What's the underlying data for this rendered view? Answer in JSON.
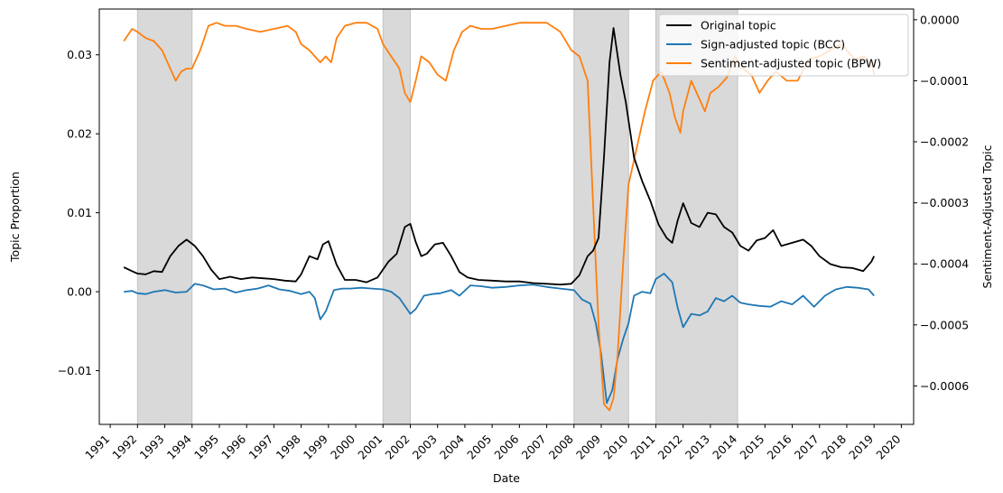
{
  "chart_data": {
    "type": "line",
    "xlabel": "Date",
    "ylabel_left": "Topic Proportion",
    "ylabel_right": "Sentiment-Adjusted Topic",
    "xlim": [
      1990.6,
      2020.45
    ],
    "ylim_left": [
      -0.0168,
      0.0358
    ],
    "ylim_right": [
      -0.000663,
      1.75e-05
    ],
    "x_ticks": [
      1991,
      1992,
      1993,
      1994,
      1995,
      1996,
      1997,
      1998,
      1999,
      2000,
      2001,
      2002,
      2003,
      2004,
      2005,
      2006,
      2007,
      2008,
      2009,
      2010,
      2011,
      2012,
      2013,
      2014,
      2015,
      2016,
      2017,
      2018,
      2019,
      2020
    ],
    "x_tick_labels": [
      "1991",
      "1992",
      "1993",
      "1994",
      "1995",
      "1996",
      "1997",
      "1998",
      "1999",
      "2000",
      "2001",
      "2002",
      "2003",
      "2004",
      "2005",
      "2006",
      "2007",
      "2008",
      "2009",
      "2010",
      "2011",
      "2012",
      "2013",
      "2014",
      "2015",
      "2016",
      "2017",
      "2018",
      "2019",
      "2020"
    ],
    "y_left_ticks": [
      -0.01,
      0.0,
      0.01,
      0.02,
      0.03
    ],
    "y_left_tick_labels": [
      "−0.01",
      "0.00",
      "0.01",
      "0.02",
      "0.03"
    ],
    "y_right_ticks": [
      -0.0006,
      -0.0005,
      -0.0004,
      -0.0003,
      -0.0002,
      -0.0001,
      0.0
    ],
    "y_right_tick_labels": [
      "−0.0006",
      "−0.0005",
      "−0.0004",
      "−0.0003",
      "−0.0002",
      "−0.0001",
      "0.0000"
    ],
    "shaded_periods": [
      [
        1992,
        1994
      ],
      [
        2001,
        2002
      ],
      [
        2008,
        2010
      ],
      [
        2011,
        2014
      ]
    ],
    "shade_color": "#d9d9d9",
    "grid": false,
    "legend_position": "top-right",
    "series": [
      {
        "name": "Original topic",
        "axis": "left",
        "color": "#000000",
        "x": [
          1991.5,
          1991.8,
          1992.0,
          1992.3,
          1992.6,
          1992.9,
          1993.2,
          1993.5,
          1993.8,
          1994.1,
          1994.4,
          1994.7,
          1995.0,
          1995.4,
          1995.8,
          1996.2,
          1996.6,
          1997.0,
          1997.4,
          1997.8,
          1998.0,
          1998.3,
          1998.6,
          1998.8,
          1999.0,
          1999.3,
          1999.6,
          2000.0,
          2000.4,
          2000.8,
          2001.2,
          2001.5,
          2001.8,
          2002.0,
          2002.2,
          2002.4,
          2002.6,
          2002.9,
          2003.2,
          2003.5,
          2003.8,
          2004.1,
          2004.5,
          2005.0,
          2005.5,
          2006.0,
          2006.5,
          2007.0,
          2007.5,
          2007.9,
          2008.2,
          2008.5,
          2008.7,
          2008.9,
          2009.1,
          2009.3,
          2009.45,
          2009.7,
          2009.9,
          2010.2,
          2010.5,
          2010.8,
          2011.1,
          2011.4,
          2011.6,
          2011.8,
          2012.0,
          2012.3,
          2012.6,
          2012.9,
          2013.2,
          2013.5,
          2013.8,
          2014.1,
          2014.4,
          2014.7,
          2015.0,
          2015.3,
          2015.6,
          2016.0,
          2016.4,
          2016.7,
          2017.0,
          2017.4,
          2017.8,
          2018.2,
          2018.6,
          2018.9,
          2019.0
        ],
        "values": [
          0.0031,
          0.0026,
          0.0023,
          0.0022,
          0.0026,
          0.0025,
          0.0045,
          0.0058,
          0.0066,
          0.0058,
          0.0045,
          0.0028,
          0.0016,
          0.0019,
          0.0016,
          0.0018,
          0.0017,
          0.0016,
          0.0014,
          0.0013,
          0.0022,
          0.0045,
          0.0041,
          0.006,
          0.0064,
          0.0034,
          0.0015,
          0.0015,
          0.0012,
          0.0018,
          0.0038,
          0.0048,
          0.0082,
          0.0086,
          0.0063,
          0.0045,
          0.0048,
          0.006,
          0.0062,
          0.0045,
          0.0025,
          0.0018,
          0.0015,
          0.0014,
          0.0013,
          0.0013,
          0.0011,
          0.001,
          0.0009,
          0.001,
          0.0021,
          0.0045,
          0.0052,
          0.0068,
          0.017,
          0.029,
          0.0334,
          0.0275,
          0.024,
          0.017,
          0.014,
          0.0115,
          0.0085,
          0.0068,
          0.0062,
          0.009,
          0.0112,
          0.0087,
          0.0082,
          0.01,
          0.0098,
          0.0082,
          0.0075,
          0.0058,
          0.0052,
          0.0065,
          0.0068,
          0.0078,
          0.0058,
          0.0062,
          0.0066,
          0.0058,
          0.0045,
          0.0035,
          0.0031,
          0.003,
          0.0026,
          0.0038,
          0.0045
        ]
      },
      {
        "name": "Sign-adjusted topic (BCC)",
        "axis": "left",
        "color": "#1f77b4",
        "x": [
          1991.5,
          1991.8,
          1992.0,
          1992.3,
          1992.6,
          1993.0,
          1993.4,
          1993.8,
          1994.1,
          1994.4,
          1994.8,
          1995.2,
          1995.6,
          1996.0,
          1996.4,
          1996.8,
          1997.2,
          1997.6,
          1998.0,
          1998.3,
          1998.5,
          1998.7,
          1998.9,
          1999.2,
          1999.5,
          1999.8,
          2000.2,
          2000.6,
          2001.0,
          2001.3,
          2001.6,
          2001.8,
          2002.0,
          2002.2,
          2002.5,
          2002.8,
          2003.1,
          2003.5,
          2003.8,
          2004.2,
          2004.6,
          2005.0,
          2005.5,
          2006.0,
          2006.5,
          2007.0,
          2007.5,
          2008.0,
          2008.3,
          2008.6,
          2008.8,
          2009.0,
          2009.2,
          2009.4,
          2009.6,
          2009.8,
          2010.0,
          2010.2,
          2010.5,
          2010.8,
          2011.0,
          2011.3,
          2011.6,
          2011.8,
          2012.0,
          2012.3,
          2012.6,
          2012.9,
          2013.2,
          2013.5,
          2013.8,
          2014.1,
          2014.4,
          2014.8,
          2015.2,
          2015.6,
          2016.0,
          2016.4,
          2016.8,
          2017.2,
          2017.6,
          2018.0,
          2018.4,
          2018.8,
          2019.0
        ],
        "values": [
          0.0,
          0.0001,
          -0.0002,
          -0.0003,
          0.0,
          0.0002,
          -0.0001,
          0.0,
          0.001,
          0.0008,
          0.0003,
          0.0004,
          -0.0001,
          0.0002,
          0.0004,
          0.0008,
          0.0003,
          0.0001,
          -0.0003,
          0.0,
          -0.0008,
          -0.0035,
          -0.0025,
          0.0002,
          0.0004,
          0.0004,
          0.0005,
          0.0004,
          0.0003,
          0.0,
          -0.0008,
          -0.0018,
          -0.0028,
          -0.0022,
          -0.0005,
          -0.0003,
          -0.0002,
          0.0002,
          -0.0005,
          0.0008,
          0.0007,
          0.0005,
          0.0006,
          0.0008,
          0.0009,
          0.0006,
          0.0004,
          0.0002,
          -0.001,
          -0.0015,
          -0.004,
          -0.008,
          -0.0141,
          -0.0125,
          -0.0085,
          -0.006,
          -0.004,
          -0.0005,
          0.0,
          -0.0002,
          0.0016,
          0.0023,
          0.0012,
          -0.002,
          -0.0045,
          -0.0028,
          -0.003,
          -0.0025,
          -0.0008,
          -0.0012,
          -0.0005,
          -0.0014,
          -0.0016,
          -0.0018,
          -0.0019,
          -0.0012,
          -0.0016,
          -0.0005,
          -0.0019,
          -0.0005,
          0.0003,
          0.0006,
          0.0005,
          0.0003,
          -0.0005
        ]
      },
      {
        "name": "Sentiment-adjusted topic (BPW)",
        "axis": "right",
        "color": "#ff7f0e",
        "x": [
          1991.5,
          1991.8,
          1992.0,
          1992.3,
          1992.6,
          1992.9,
          1993.2,
          1993.4,
          1993.6,
          1993.8,
          1994.0,
          1994.3,
          1994.6,
          1994.9,
          1995.2,
          1995.6,
          1996.0,
          1996.5,
          1997.0,
          1997.5,
          1997.8,
          1998.0,
          1998.3,
          1998.5,
          1998.7,
          1998.9,
          1999.1,
          1999.3,
          1999.6,
          2000.0,
          2000.4,
          2000.8,
          2001.0,
          2001.3,
          2001.6,
          2001.8,
          2002.0,
          2002.2,
          2002.4,
          2002.7,
          2003.0,
          2003.3,
          2003.6,
          2003.9,
          2004.2,
          2004.6,
          2005.0,
          2005.5,
          2006.0,
          2006.5,
          2007.0,
          2007.5,
          2007.9,
          2008.2,
          2008.5,
          2008.7,
          2008.9,
          2009.1,
          2009.3,
          2009.45,
          2009.6,
          2009.8,
          2010.0,
          2010.3,
          2010.6,
          2010.9,
          2011.2,
          2011.5,
          2011.7,
          2011.9,
          2012.0,
          2012.3,
          2012.6,
          2012.8,
          2013.0,
          2013.3,
          2013.6,
          2013.9,
          2014.2,
          2014.5,
          2014.8,
          2015.1,
          2015.4,
          2015.8,
          2016.2,
          2016.6,
          2017.0,
          2017.4,
          2017.8,
          2018.0,
          2018.3,
          2018.6,
          2018.9,
          2019.0
        ],
        "values": [
          -3.5e-05,
          -1.5e-05,
          -2e-05,
          -3e-05,
          -3.5e-05,
          -5e-05,
          -8e-05,
          -0.0001,
          -8.5e-05,
          -8e-05,
          -8e-05,
          -5e-05,
          -1e-05,
          -5e-06,
          -1e-05,
          -1e-05,
          -1.5e-05,
          -2e-05,
          -1.5e-05,
          -1e-05,
          -2e-05,
          -4e-05,
          -5e-05,
          -6e-05,
          -7e-05,
          -6e-05,
          -7e-05,
          -3e-05,
          -1e-05,
          -5e-06,
          -5e-06,
          -1.5e-05,
          -4e-05,
          -6e-05,
          -8e-05,
          -0.00012,
          -0.000135,
          -0.0001,
          -6e-05,
          -7e-05,
          -9e-05,
          -0.0001,
          -5e-05,
          -2e-05,
          -1e-05,
          -1.5e-05,
          -1.5e-05,
          -1e-05,
          -5e-06,
          -5e-06,
          -5e-06,
          -2e-05,
          -5e-05,
          -6e-05,
          -0.0001,
          -0.0003,
          -0.0005,
          -0.00063,
          -0.00064,
          -0.00062,
          -0.00055,
          -0.0004,
          -0.00027,
          -0.00021,
          -0.00015,
          -0.0001,
          -8.5e-05,
          -0.00012,
          -0.00016,
          -0.000185,
          -0.00015,
          -0.0001,
          -0.00013,
          -0.00015,
          -0.00012,
          -0.00011,
          -9.5e-05,
          -6e-05,
          -8e-05,
          -9e-05,
          -0.00012,
          -0.0001,
          -8.5e-05,
          -0.0001,
          -0.0001,
          -6.5e-05,
          -6e-05,
          -5e-05,
          -4e-05,
          -5e-05,
          -6.5e-05,
          -6e-05,
          -7e-05,
          -9e-05
        ]
      }
    ]
  }
}
